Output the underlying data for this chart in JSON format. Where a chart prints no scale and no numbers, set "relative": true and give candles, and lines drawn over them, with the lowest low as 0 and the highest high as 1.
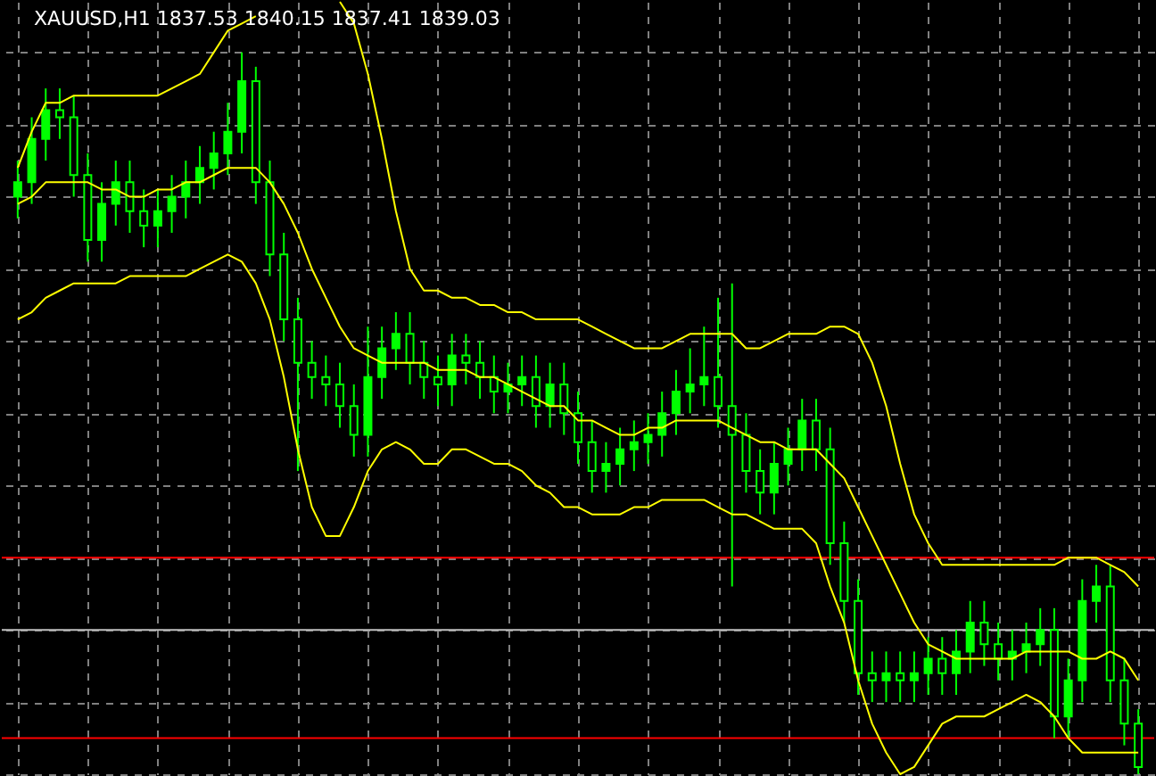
{
  "chart_data": {
    "type": "candlestick",
    "title": "XAUUSD,H1  1837.53 1840.15 1837.41 1839.03",
    "relative": true,
    "grid": true,
    "line_style": "solid",
    "marker": "none",
    "categories": [
      null,
      null,
      null,
      null,
      null,
      null,
      null,
      null,
      null,
      null,
      null,
      null,
      null,
      null,
      null,
      null,
      null,
      null,
      null,
      null,
      null,
      null,
      null,
      null,
      null,
      null,
      null,
      null,
      null,
      null,
      null,
      null,
      null,
      null,
      null,
      null,
      null,
      null,
      null,
      null,
      null,
      null,
      null,
      null,
      null,
      null,
      null,
      null,
      null,
      null,
      null,
      null,
      null,
      null,
      null,
      null,
      null,
      null,
      null,
      null,
      null,
      null,
      null,
      null,
      null,
      null,
      null,
      null,
      null,
      null,
      null,
      null,
      null,
      null,
      null,
      null,
      null,
      null,
      null,
      null,
      null
    ],
    "series": [
      {
        "color": "#00ff00",
        "ohlc": [
          [
            0.8,
            0.85,
            0.77,
            0.82
          ],
          [
            0.82,
            0.91,
            0.79,
            0.88
          ],
          [
            0.88,
            0.95,
            0.85,
            0.92
          ],
          [
            0.92,
            0.95,
            0.88,
            0.91
          ],
          [
            0.91,
            0.94,
            0.8,
            0.83
          ],
          [
            0.83,
            0.86,
            0.71,
            0.74
          ],
          [
            0.74,
            0.82,
            0.71,
            0.79
          ],
          [
            0.79,
            0.85,
            0.76,
            0.82
          ],
          [
            0.82,
            0.85,
            0.75,
            0.78
          ],
          [
            0.78,
            0.81,
            0.73,
            0.76
          ],
          [
            0.76,
            0.81,
            0.73,
            0.78
          ],
          [
            0.78,
            0.83,
            0.75,
            0.8
          ],
          [
            0.8,
            0.85,
            0.77,
            0.82
          ],
          [
            0.82,
            0.87,
            0.79,
            0.84
          ],
          [
            0.84,
            0.89,
            0.81,
            0.86
          ],
          [
            0.86,
            0.93,
            0.83,
            0.89
          ],
          [
            0.89,
            1.0,
            0.86,
            0.96
          ],
          [
            0.96,
            0.98,
            0.79,
            0.82
          ],
          [
            0.82,
            0.85,
            0.69,
            0.72
          ],
          [
            0.72,
            0.75,
            0.6,
            0.63
          ],
          [
            0.63,
            0.66,
            0.42,
            0.57
          ],
          [
            0.57,
            0.6,
            0.52,
            0.55
          ],
          [
            0.55,
            0.58,
            0.51,
            0.54
          ],
          [
            0.54,
            0.57,
            0.48,
            0.51
          ],
          [
            0.51,
            0.54,
            0.44,
            0.47
          ],
          [
            0.47,
            0.62,
            0.44,
            0.55
          ],
          [
            0.55,
            0.62,
            0.52,
            0.59
          ],
          [
            0.59,
            0.64,
            0.56,
            0.61
          ],
          [
            0.61,
            0.64,
            0.54,
            0.57
          ],
          [
            0.57,
            0.6,
            0.52,
            0.55
          ],
          [
            0.55,
            0.58,
            0.51,
            0.54
          ],
          [
            0.54,
            0.61,
            0.51,
            0.58
          ],
          [
            0.58,
            0.61,
            0.54,
            0.57
          ],
          [
            0.57,
            0.6,
            0.52,
            0.55
          ],
          [
            0.55,
            0.58,
            0.5,
            0.53
          ],
          [
            0.53,
            0.57,
            0.5,
            0.54
          ],
          [
            0.54,
            0.58,
            0.51,
            0.55
          ],
          [
            0.55,
            0.58,
            0.48,
            0.51
          ],
          [
            0.51,
            0.57,
            0.48,
            0.54
          ],
          [
            0.54,
            0.57,
            0.47,
            0.5
          ],
          [
            0.5,
            0.53,
            0.43,
            0.46
          ],
          [
            0.46,
            0.49,
            0.39,
            0.42
          ],
          [
            0.42,
            0.46,
            0.39,
            0.43
          ],
          [
            0.43,
            0.48,
            0.4,
            0.45
          ],
          [
            0.45,
            0.49,
            0.42,
            0.46
          ],
          [
            0.46,
            0.5,
            0.43,
            0.47
          ],
          [
            0.47,
            0.53,
            0.44,
            0.5
          ],
          [
            0.5,
            0.56,
            0.47,
            0.53
          ],
          [
            0.53,
            0.59,
            0.5,
            0.54
          ],
          [
            0.54,
            0.62,
            0.51,
            0.55
          ],
          [
            0.55,
            0.66,
            0.48,
            0.51
          ],
          [
            0.51,
            0.68,
            0.26,
            0.47
          ],
          [
            0.47,
            0.5,
            0.39,
            0.42
          ],
          [
            0.42,
            0.45,
            0.36,
            0.39
          ],
          [
            0.39,
            0.46,
            0.36,
            0.43
          ],
          [
            0.43,
            0.48,
            0.4,
            0.45
          ],
          [
            0.45,
            0.52,
            0.42,
            0.49
          ],
          [
            0.49,
            0.52,
            0.42,
            0.45
          ],
          [
            0.45,
            0.48,
            0.29,
            0.32
          ],
          [
            0.32,
            0.35,
            0.21,
            0.24
          ],
          [
            0.24,
            0.27,
            0.11,
            0.14
          ],
          [
            0.14,
            0.17,
            0.1,
            0.13
          ],
          [
            0.13,
            0.17,
            0.1,
            0.14
          ],
          [
            0.14,
            0.17,
            0.1,
            0.13
          ],
          [
            0.13,
            0.17,
            0.1,
            0.14
          ],
          [
            0.14,
            0.19,
            0.11,
            0.16
          ],
          [
            0.16,
            0.19,
            0.11,
            0.14
          ],
          [
            0.14,
            0.2,
            0.11,
            0.17
          ],
          [
            0.17,
            0.24,
            0.14,
            0.21
          ],
          [
            0.21,
            0.24,
            0.15,
            0.18
          ],
          [
            0.18,
            0.21,
            0.13,
            0.16
          ],
          [
            0.16,
            0.2,
            0.13,
            0.17
          ],
          [
            0.17,
            0.21,
            0.14,
            0.18
          ],
          [
            0.18,
            0.23,
            0.15,
            0.2
          ],
          [
            0.2,
            0.23,
            0.05,
            0.08
          ],
          [
            0.08,
            0.16,
            0.05,
            0.13
          ],
          [
            0.13,
            0.27,
            0.1,
            0.24
          ],
          [
            0.24,
            0.29,
            0.21,
            0.26
          ],
          [
            0.26,
            0.29,
            0.1,
            0.13
          ],
          [
            0.13,
            0.16,
            0.04,
            0.07
          ],
          [
            0.07,
            0.09,
            0.0,
            0.01
          ]
        ]
      },
      {
        "type": "line",
        "color": "#ffff00",
        "values": [
          0.84,
          0.89,
          0.93,
          0.93,
          0.94,
          0.94,
          0.94,
          0.94,
          0.94,
          0.94,
          0.94,
          0.95,
          0.96,
          0.97,
          1.0,
          1.03,
          1.04,
          1.05,
          null,
          null,
          null,
          null,
          null,
          1.07,
          1.04,
          0.97,
          0.88,
          0.78,
          0.7,
          0.67,
          0.67,
          0.66,
          0.66,
          0.65,
          0.65,
          0.64,
          0.64,
          0.63,
          0.63,
          0.63,
          0.63,
          0.62,
          0.61,
          0.6,
          0.59,
          0.59,
          0.59,
          0.6,
          0.61,
          0.61,
          0.61,
          0.61,
          0.59,
          0.59,
          0.6,
          0.61,
          0.61,
          0.61,
          0.62,
          0.62,
          0.61,
          0.57,
          0.51,
          0.43,
          0.36,
          0.32,
          0.29,
          0.29,
          0.29,
          0.29,
          0.29,
          0.29,
          0.29,
          0.29,
          0.29,
          0.3,
          0.3,
          0.3,
          0.29,
          0.28,
          0.26
        ]
      },
      {
        "type": "line",
        "color": "#ffff00",
        "values": [
          0.79,
          0.8,
          0.82,
          0.82,
          0.82,
          0.82,
          0.81,
          0.81,
          0.8,
          0.8,
          0.81,
          0.81,
          0.82,
          0.82,
          0.83,
          0.84,
          0.84,
          0.84,
          0.82,
          0.79,
          0.75,
          0.7,
          0.66,
          0.62,
          0.59,
          0.58,
          0.57,
          0.57,
          0.57,
          0.57,
          0.56,
          0.56,
          0.56,
          0.55,
          0.55,
          0.54,
          0.53,
          0.52,
          0.51,
          0.51,
          0.49,
          0.49,
          0.48,
          0.47,
          0.47,
          0.48,
          0.48,
          0.49,
          0.49,
          0.49,
          0.49,
          0.48,
          0.47,
          0.46,
          0.46,
          0.45,
          0.45,
          0.45,
          0.43,
          0.41,
          0.37,
          0.33,
          0.29,
          0.25,
          0.21,
          0.18,
          0.17,
          0.16,
          0.16,
          0.16,
          0.16,
          0.16,
          0.17,
          0.17,
          0.17,
          0.17,
          0.16,
          0.16,
          0.17,
          0.16,
          0.13
        ]
      },
      {
        "type": "line",
        "color": "#ffff00",
        "values": [
          0.63,
          0.64,
          0.66,
          0.67,
          0.68,
          0.68,
          0.68,
          0.68,
          0.69,
          0.69,
          0.69,
          0.69,
          0.69,
          0.7,
          0.71,
          0.72,
          0.71,
          0.68,
          0.63,
          0.55,
          0.45,
          0.37,
          0.33,
          0.33,
          0.37,
          0.42,
          0.45,
          0.46,
          0.45,
          0.43,
          0.43,
          0.45,
          0.45,
          0.44,
          0.43,
          0.43,
          0.42,
          0.4,
          0.39,
          0.37,
          0.37,
          0.36,
          0.36,
          0.36,
          0.37,
          0.37,
          0.38,
          0.38,
          0.38,
          0.38,
          0.37,
          0.36,
          0.36,
          0.35,
          0.34,
          0.34,
          0.34,
          0.32,
          0.26,
          0.21,
          0.13,
          0.07,
          0.03,
          0.0,
          0.01,
          0.04,
          0.07,
          0.08,
          0.08,
          0.08,
          0.09,
          0.1,
          0.11,
          0.1,
          0.08,
          0.05,
          0.03,
          0.03,
          0.03,
          0.03,
          0.03
        ]
      }
    ],
    "ref_lines": [
      {
        "axis": "y",
        "value": 0.3,
        "color": "#ff0000"
      },
      {
        "axis": "y",
        "value": 0.2,
        "color": "#c0c0c0"
      },
      {
        "axis": "y",
        "value": 0.05,
        "color": "#ff0000"
      }
    ]
  }
}
